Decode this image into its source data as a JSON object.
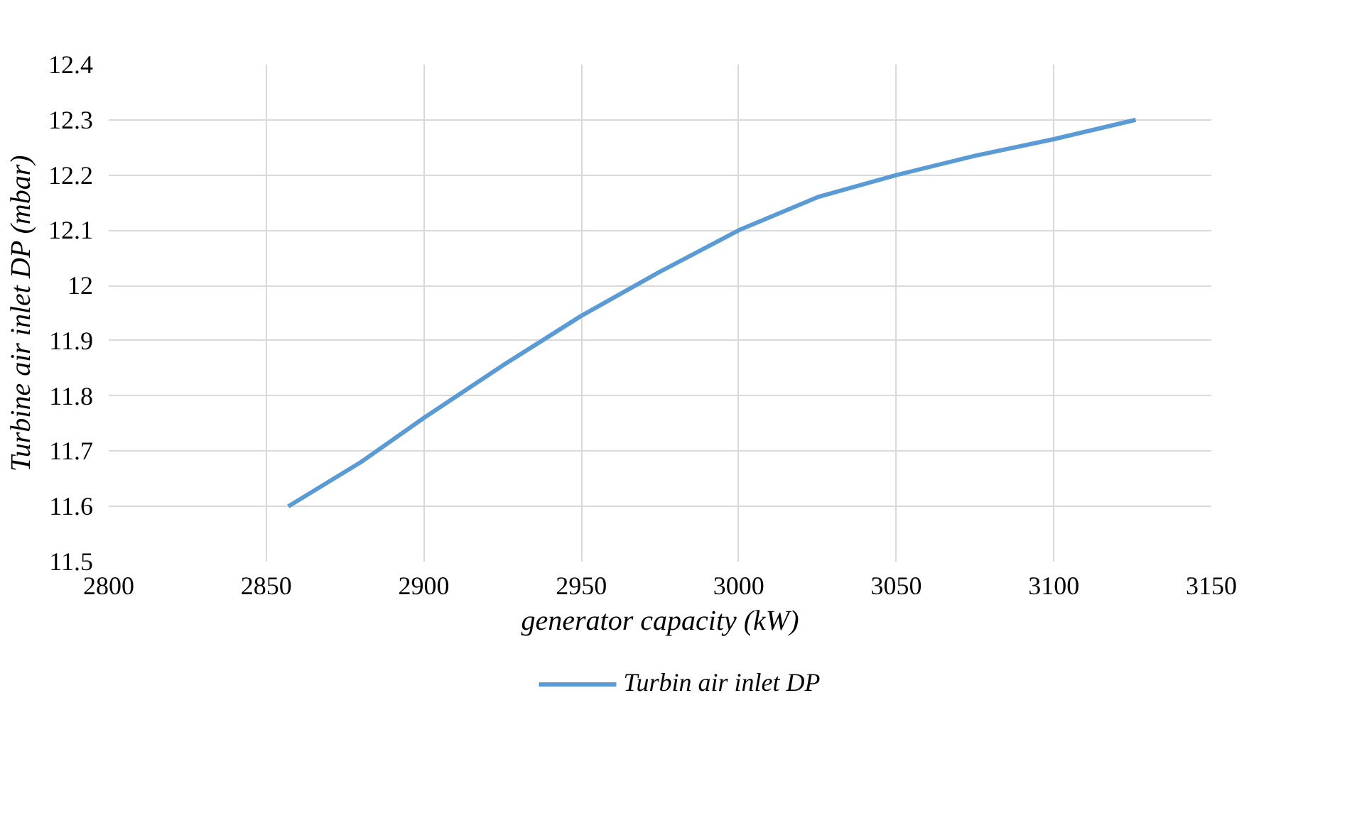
{
  "chart_data": {
    "type": "line",
    "xlabel": "generator capacity (kW)",
    "ylabel": "Turbine air inlet DP (mbar)",
    "x": [
      2857,
      2880,
      2900,
      2925,
      2950,
      2975,
      3000,
      3025,
      3050,
      3075,
      3100,
      3126
    ],
    "series": [
      {
        "name": "Turbin air inlet DP",
        "color": "#5b9bd5",
        "values": [
          11.6,
          11.68,
          11.76,
          11.855,
          11.945,
          12.025,
          12.1,
          12.16,
          12.2,
          12.235,
          12.265,
          12.3
        ]
      }
    ],
    "xlim": [
      2800,
      3150
    ],
    "xticks": [
      2800,
      2850,
      2900,
      2950,
      3000,
      3050,
      3100,
      3150
    ],
    "ylim": [
      11.5,
      12.4
    ],
    "yticks": [
      11.5,
      11.6,
      11.7,
      11.8,
      11.9,
      12,
      12.1,
      12.2,
      12.3,
      12.4
    ],
    "grid": true,
    "legend": "bottom",
    "marker": "none",
    "line_style": "solid"
  }
}
